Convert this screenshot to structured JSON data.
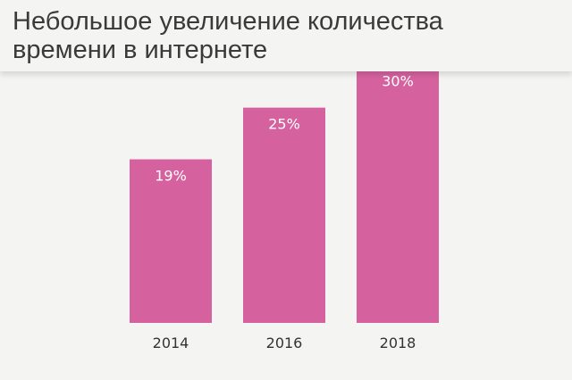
{
  "header": {
    "title": "Небольшое увеличение количества времени в интернете"
  },
  "chart_data": {
    "type": "bar",
    "title": "Небольшое увеличение количества времени в интернете",
    "categories": [
      "2014",
      "2016",
      "2018"
    ],
    "values": [
      19,
      25,
      30
    ],
    "labels": [
      "19%",
      "25%",
      "30%"
    ],
    "ylim": [
      0,
      37.5
    ],
    "grid": false,
    "bar_color": "#d5629f",
    "label_color": "#ffffff",
    "tick_color": "#333333"
  }
}
